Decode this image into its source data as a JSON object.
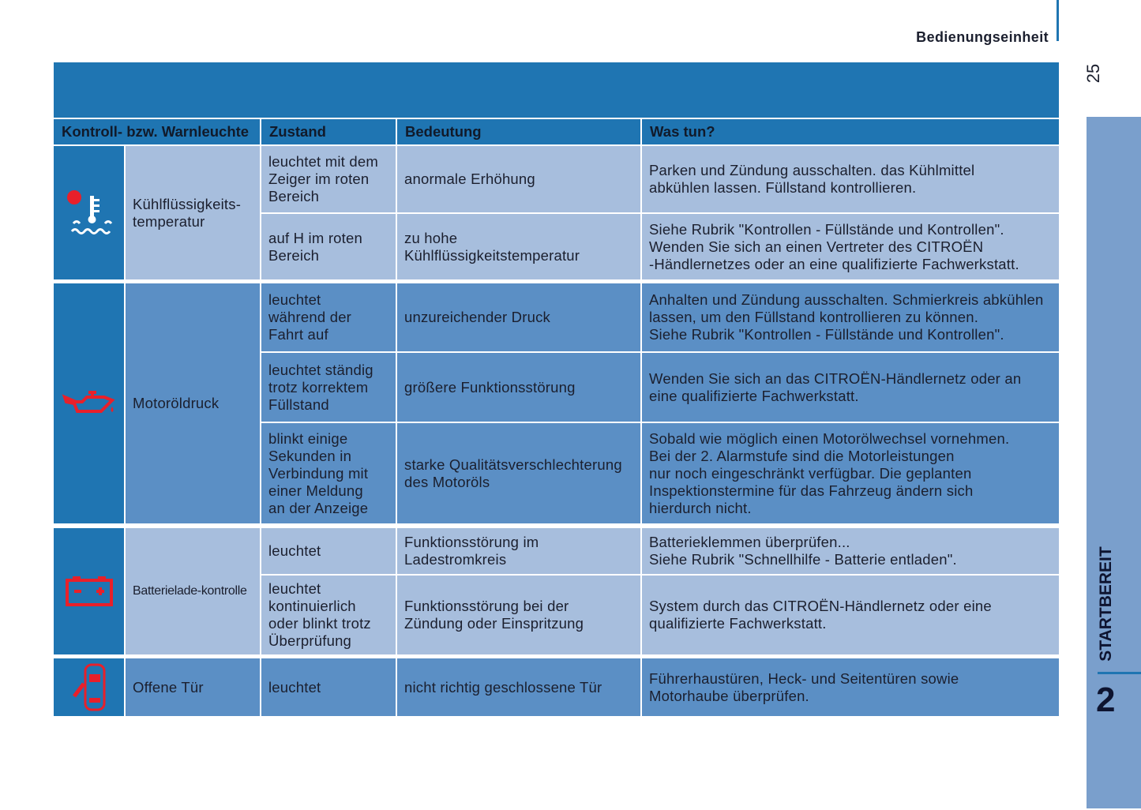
{
  "header": {
    "section": "Bedienungseinheit",
    "page_number": "25"
  },
  "side_tab": {
    "chapter_title": "STARTBEREIT",
    "chapter_number": "2"
  },
  "table": {
    "columns": [
      "Kontroll- bzw. Warnleuchte",
      "Zustand",
      "Bedeutung",
      "Was tun?"
    ],
    "groups": [
      {
        "icon": "coolant-temperature-icon",
        "name": "Kühlflüssigkeits-\ntemperatur",
        "rows": [
          {
            "state": "leuchtet mit dem\nZeiger im roten\nBereich",
            "meaning": "anormale Erhöhung",
            "action": "Parken und Zündung ausschalten. das Kühlmittel\nabkühlen lassen. Füllstand kontrollieren."
          },
          {
            "state": "auf H im roten\nBereich",
            "meaning": "zu hohe\nKühlflüssigkeitstemperatur",
            "action": "Siehe Rubrik \"Kontrollen - Füllstände und Kontrollen\".\nWenden Sie sich an einen Vertreter des CITROËN\n-Händlernetzes oder an eine qualifizierte Fachwerkstatt."
          }
        ]
      },
      {
        "icon": "oil-pressure-icon",
        "name": "Motoröldruck",
        "rows": [
          {
            "state": "leuchtet\nwährend der\nFahrt auf",
            "meaning": "unzureichender Druck",
            "action": "Anhalten und Zündung ausschalten. Schmierkreis abkühlen\nlassen, um den Füllstand kontrollieren zu können.\nSiehe Rubrik \"Kontrollen - Füllstände und Kontrollen\"."
          },
          {
            "state": "leuchtet ständig\ntrotz korrektem\nFüllstand",
            "meaning": "größere Funktionsstörung",
            "action": "Wenden Sie sich an das CITROËN-Händlernetz oder an\neine qualifizierte Fachwerkstatt."
          },
          {
            "state": "blinkt einige\nSekunden in\nVerbindung mit\neiner Meldung\nan der Anzeige",
            "meaning": "starke Qualitätsverschlechterung\ndes Motoröls",
            "action": "Sobald wie möglich einen Motorölwechsel vornehmen.\nBei der 2. Alarmstufe sind die Motorleistungen\nnur noch eingeschränkt verfügbar. Die geplanten\nInspektionstermine für das Fahrzeug ändern sich\nhierdurch nicht."
          }
        ]
      },
      {
        "icon": "battery-icon",
        "name": "Batterielade-kontrolle",
        "rows": [
          {
            "state": "leuchtet",
            "meaning": "Funktionsstörung im\nLadestromkreis",
            "action": "Batterieklemmen überprüfen...\nSiehe Rubrik \"Schnellhilfe - Batterie entladen\"."
          },
          {
            "state": "leuchtet\nkontinuierlich\noder blinkt trotz\nÜberprüfung",
            "meaning": "Funktionsstörung bei der\nZündung oder Einspritzung",
            "action": "System durch das CITROËN-Händlernetz oder eine\nqualifizierte Fachwerkstatt."
          }
        ]
      },
      {
        "icon": "open-door-icon",
        "name": "Offene Tür",
        "rows": [
          {
            "state": "leuchtet",
            "meaning": "nicht richtig geschlossene Tür",
            "action": "Führerhaustüren, Heck- und Seitentüren sowie\nMotorhaube überprüfen."
          }
        ]
      }
    ]
  },
  "colors": {
    "dark_blue": "#1f75b2",
    "light_row": "#a7bedd",
    "medium_row": "#5b8fc5",
    "side_tab": "#7a9fcc",
    "warning_red": "#e8202a"
  }
}
